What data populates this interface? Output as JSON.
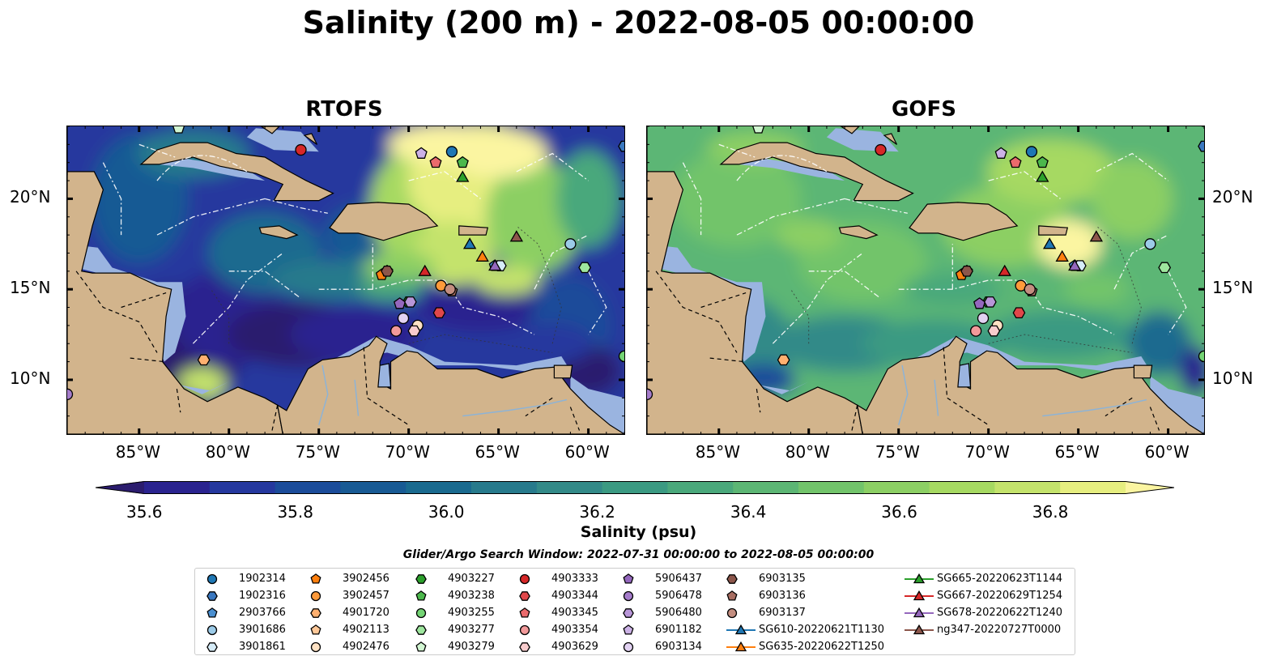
{
  "figure": {
    "title": "Salinity (200 m) - 2022-08-05 00:00:00"
  },
  "panels": [
    {
      "title": "RTOFS",
      "model": "rtofs"
    },
    {
      "title": "GOFS",
      "model": "gofs"
    }
  ],
  "axes": {
    "lon_ticks": [
      "85°W",
      "80°W",
      "75°W",
      "70°W",
      "65°W",
      "60°W"
    ],
    "lat_ticks": [
      "20°N",
      "15°N",
      "10°N"
    ],
    "lon_values": [
      -85,
      -80,
      -75,
      -70,
      -65,
      -60
    ],
    "lat_values": [
      20,
      15,
      10
    ],
    "lon_range": [
      -89,
      -58
    ],
    "lat_range": [
      7,
      24
    ]
  },
  "colorbar": {
    "label": "Salinity (psu)",
    "tick_labels": [
      "35.6",
      "35.8",
      "36.0",
      "36.2",
      "36.4",
      "36.6",
      "36.8"
    ],
    "ticks": [
      35.6,
      35.8,
      36.0,
      36.2,
      36.4,
      36.6,
      36.8
    ],
    "range": [
      35.55,
      36.95
    ],
    "extend": "both",
    "colors": [
      "#2b1c6e",
      "#2a238f",
      "#25389e",
      "#1b4c9a",
      "#185a94",
      "#1a6a8f",
      "#277a8c",
      "#338a88",
      "#3b9a82",
      "#4aa87b",
      "#5cb674",
      "#72c46b",
      "#8ccf64",
      "#a6d962",
      "#c4e36c",
      "#e6ee80",
      "#fbf5a1"
    ]
  },
  "land_color": "#d2b48c",
  "shelf_color": "#9ab4e0",
  "legend": {
    "title": "Glider/Argo Search Window: 2022-07-31 00:00:00 to 2022-08-05 00:00:00",
    "columns": [
      [
        {
          "label": "1902314",
          "marker": "circle",
          "color": "#1f77b4"
        },
        {
          "label": "1902316",
          "marker": "hexagon",
          "color": "#3a78c0"
        },
        {
          "label": "2903766",
          "marker": "pentagon",
          "color": "#4a8fd0"
        },
        {
          "label": "3901686",
          "marker": "circle",
          "color": "#9ccbe8"
        },
        {
          "label": "3901861",
          "marker": "hexagon",
          "color": "#d6ecf8"
        }
      ],
      [
        {
          "label": "3902456",
          "marker": "pentagon",
          "color": "#ff7f0e"
        },
        {
          "label": "3902457",
          "marker": "circle",
          "color": "#ff9a3a"
        },
        {
          "label": "4901720",
          "marker": "hexagon",
          "color": "#ffb070"
        },
        {
          "label": "4902113",
          "marker": "pentagon",
          "color": "#ffc898"
        },
        {
          "label": "4902476",
          "marker": "circle",
          "color": "#ffe2c4"
        }
      ],
      [
        {
          "label": "4903227",
          "marker": "hexagon",
          "color": "#2ca02c"
        },
        {
          "label": "4903238",
          "marker": "pentagon",
          "color": "#4cb84c"
        },
        {
          "label": "4903255",
          "marker": "circle",
          "color": "#74d474"
        },
        {
          "label": "4903277",
          "marker": "hexagon",
          "color": "#9ee69e"
        },
        {
          "label": "4903279",
          "marker": "pentagon",
          "color": "#d2f6d2"
        }
      ],
      [
        {
          "label": "4903333",
          "marker": "circle",
          "color": "#d62728"
        },
        {
          "label": "4903344",
          "marker": "hexagon",
          "color": "#e0474a"
        },
        {
          "label": "4903345",
          "marker": "pentagon",
          "color": "#ea6a6c"
        },
        {
          "label": "4903354",
          "marker": "circle",
          "color": "#f2999a"
        },
        {
          "label": "4903629",
          "marker": "hexagon",
          "color": "#f8cccd"
        }
      ],
      [
        {
          "label": "5906437",
          "marker": "pentagon",
          "color": "#9467bd"
        },
        {
          "label": "5906478",
          "marker": "circle",
          "color": "#a57ccb"
        },
        {
          "label": "5906480",
          "marker": "hexagon",
          "color": "#b896d8"
        },
        {
          "label": "6901182",
          "marker": "pentagon",
          "color": "#ccb2e6"
        },
        {
          "label": "6903134",
          "marker": "circle",
          "color": "#e2d2f2"
        }
      ],
      [
        {
          "label": "6903135",
          "marker": "hexagon",
          "color": "#8c564b"
        },
        {
          "label": "6903136",
          "marker": "pentagon",
          "color": "#a86e62"
        },
        {
          "label": "6903137",
          "marker": "circle",
          "color": "#c48e80"
        },
        {
          "label": "SG610-20220621T1130",
          "marker": "triangle",
          "color": "#1f77b4",
          "line": true
        },
        {
          "label": "SG635-20220622T1250",
          "marker": "triangle",
          "color": "#ff7f0e",
          "line": true
        }
      ],
      [
        {
          "label": "SG665-20220623T1144",
          "marker": "triangle",
          "color": "#2ca02c",
          "line": true
        },
        {
          "label": "SG667-20220629T1254",
          "marker": "triangle",
          "color": "#d62728",
          "line": true
        },
        {
          "label": "SG678-20220622T1240",
          "marker": "triangle",
          "color": "#9467bd",
          "line": true
        },
        {
          "label": "ng347-20220727T0000",
          "marker": "triangle",
          "color": "#8c564b",
          "line": true
        }
      ]
    ]
  },
  "observations": [
    {
      "id": "1902314",
      "lon": -67.6,
      "lat": 22.6,
      "marker": "circle",
      "color": "#1f77b4"
    },
    {
      "id": "1902316",
      "lon": -58.0,
      "lat": 22.9,
      "marker": "hexagon",
      "color": "#3a78c0"
    },
    {
      "id": "2903766",
      "lon": -65.2,
      "lat": 16.3,
      "marker": "pentagon",
      "color": "#4a8fd0"
    },
    {
      "id": "3901686",
      "lon": -61.0,
      "lat": 17.5,
      "marker": "circle",
      "color": "#9ccbe8"
    },
    {
      "id": "3901861",
      "lon": -64.9,
      "lat": 16.3,
      "marker": "hexagon",
      "color": "#d6ecf8"
    },
    {
      "id": "3902456",
      "lon": -71.5,
      "lat": 15.8,
      "marker": "pentagon",
      "color": "#ff7f0e"
    },
    {
      "id": "3902457",
      "lon": -68.2,
      "lat": 15.2,
      "marker": "circle",
      "color": "#ff9a3a"
    },
    {
      "id": "4901720",
      "lon": -81.4,
      "lat": 11.1,
      "marker": "hexagon",
      "color": "#ffb070"
    },
    {
      "id": "4902113",
      "lon": -71.2,
      "lat": 16.0,
      "marker": "pentagon",
      "color": "#ffc898"
    },
    {
      "id": "4902476",
      "lon": -69.5,
      "lat": 13.0,
      "marker": "circle",
      "color": "#ffe2c4"
    },
    {
      "id": "4903227",
      "lon": -70.0,
      "lat": 14.3,
      "marker": "hexagon",
      "color": "#2ca02c"
    },
    {
      "id": "4903238",
      "lon": -67.0,
      "lat": 22.0,
      "marker": "pentagon",
      "color": "#4cb84c"
    },
    {
      "id": "4903255",
      "lon": -58.0,
      "lat": 11.3,
      "marker": "circle",
      "color": "#74d474"
    },
    {
      "id": "4903277",
      "lon": -60.2,
      "lat": 16.2,
      "marker": "hexagon",
      "color": "#9ee69e"
    },
    {
      "id": "4903279",
      "lon": -82.8,
      "lat": 23.9,
      "marker": "pentagon",
      "color": "#d2f6d2"
    },
    {
      "id": "4903333",
      "lon": -76.0,
      "lat": 22.7,
      "marker": "circle",
      "color": "#d62728"
    },
    {
      "id": "4903344",
      "lon": -68.3,
      "lat": 13.7,
      "marker": "hexagon",
      "color": "#e0474a"
    },
    {
      "id": "4903345",
      "lon": -68.5,
      "lat": 22.0,
      "marker": "pentagon",
      "color": "#ea6a6c"
    },
    {
      "id": "4903354",
      "lon": -70.7,
      "lat": 12.7,
      "marker": "circle",
      "color": "#f2999a"
    },
    {
      "id": "4903629",
      "lon": -69.7,
      "lat": 12.7,
      "marker": "hexagon",
      "color": "#f8cccd"
    },
    {
      "id": "5906437",
      "lon": -70.5,
      "lat": 14.2,
      "marker": "pentagon",
      "color": "#9467bd"
    },
    {
      "id": "5906478",
      "lon": -89.0,
      "lat": 9.2,
      "marker": "circle",
      "color": "#a57ccb"
    },
    {
      "id": "5906480",
      "lon": -69.9,
      "lat": 14.3,
      "marker": "hexagon",
      "color": "#b896d8"
    },
    {
      "id": "6901182",
      "lon": -69.3,
      "lat": 22.5,
      "marker": "pentagon",
      "color": "#ccb2e6"
    },
    {
      "id": "6903134",
      "lon": -70.3,
      "lat": 13.4,
      "marker": "circle",
      "color": "#e2d2f2"
    },
    {
      "id": "6903135",
      "lon": -71.2,
      "lat": 16.0,
      "marker": "hexagon",
      "color": "#8c564b"
    },
    {
      "id": "6903136",
      "lon": -67.6,
      "lat": 14.9,
      "marker": "pentagon",
      "color": "#a86e62"
    },
    {
      "id": "6903137",
      "lon": -67.7,
      "lat": 15.0,
      "marker": "circle",
      "color": "#c48e80"
    },
    {
      "id": "SG610-20220621T1130",
      "lon": -66.6,
      "lat": 17.5,
      "marker": "triangle",
      "color": "#1f77b4"
    },
    {
      "id": "SG635-20220622T1250",
      "lon": -65.9,
      "lat": 16.8,
      "marker": "triangle",
      "color": "#ff7f0e"
    },
    {
      "id": "SG665-20220623T1144",
      "lon": -67.0,
      "lat": 21.2,
      "marker": "triangle",
      "color": "#2ca02c"
    },
    {
      "id": "SG667-20220629T1254",
      "lon": -69.1,
      "lat": 16.0,
      "marker": "triangle",
      "color": "#d62728"
    },
    {
      "id": "SG678-20220622T1240",
      "lon": -65.2,
      "lat": 16.3,
      "marker": "triangle",
      "color": "#9467bd"
    },
    {
      "id": "ng347-20220727T0000",
      "lon": -64.0,
      "lat": 17.9,
      "marker": "triangle",
      "color": "#8c564b"
    }
  ]
}
